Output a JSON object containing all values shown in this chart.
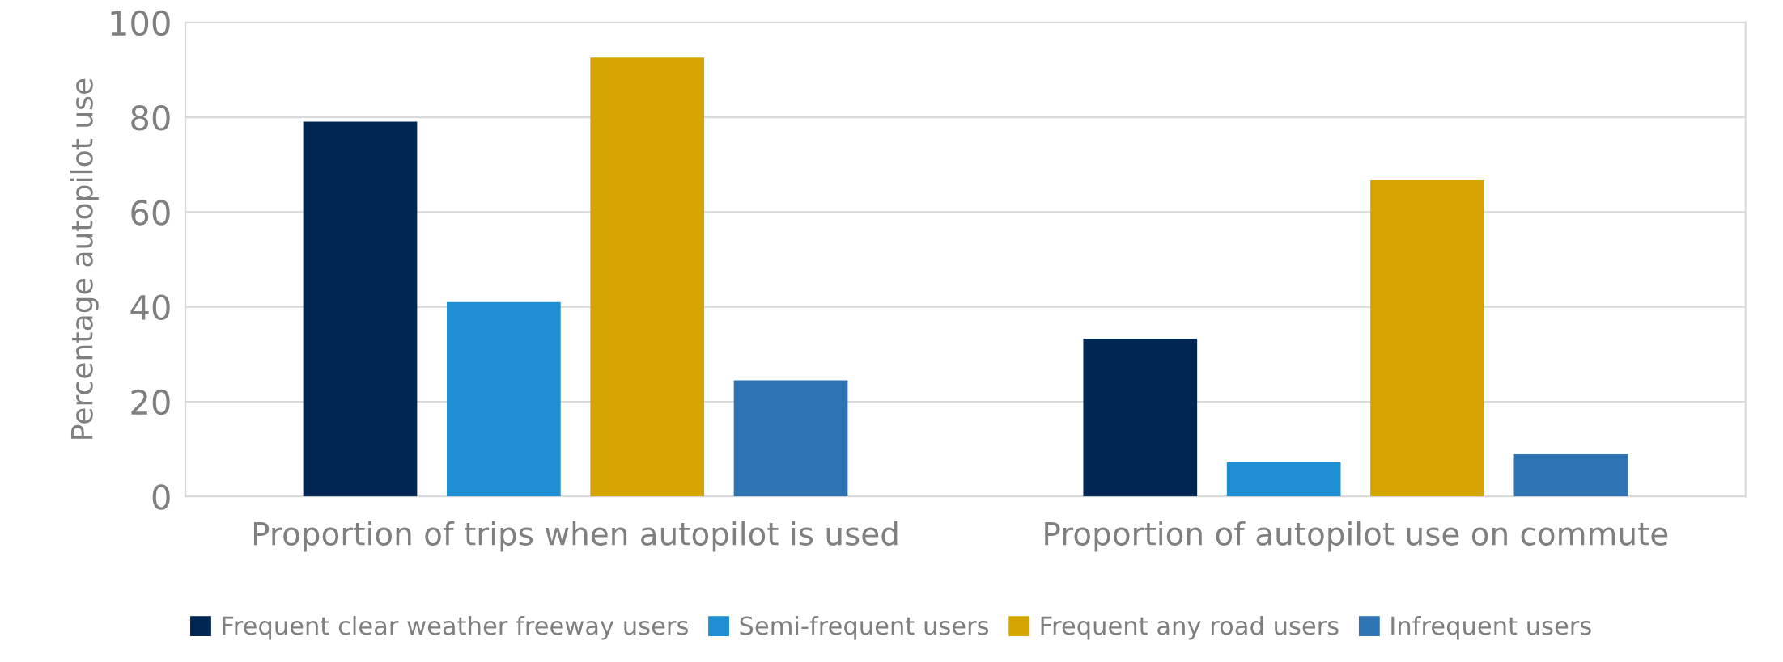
{
  "chart_data": {
    "type": "bar",
    "ylabel": "Percentage autopilot use",
    "categories": [
      "Proportion of trips when autopilot is used",
      "Proportion of autopilot use on commute"
    ],
    "series": [
      {
        "name": "Frequent clear weather freeway users",
        "color": "#002753",
        "values": [
          79.1,
          33.3
        ]
      },
      {
        "name": "Semi-frequent users",
        "color": "#1f8fd3",
        "values": [
          41.0,
          7.2
        ]
      },
      {
        "name": "Frequent any road users",
        "color": "#d4a500",
        "values": [
          92.6,
          66.7
        ]
      },
      {
        "name": "Infrequent users",
        "color": "#2e74b5",
        "values": [
          24.5,
          8.9
        ]
      }
    ],
    "ylim": [
      0,
      100
    ],
    "yticks": [
      0,
      20,
      40,
      60,
      80,
      100
    ],
    "grid": "y",
    "legend": "bottom"
  }
}
